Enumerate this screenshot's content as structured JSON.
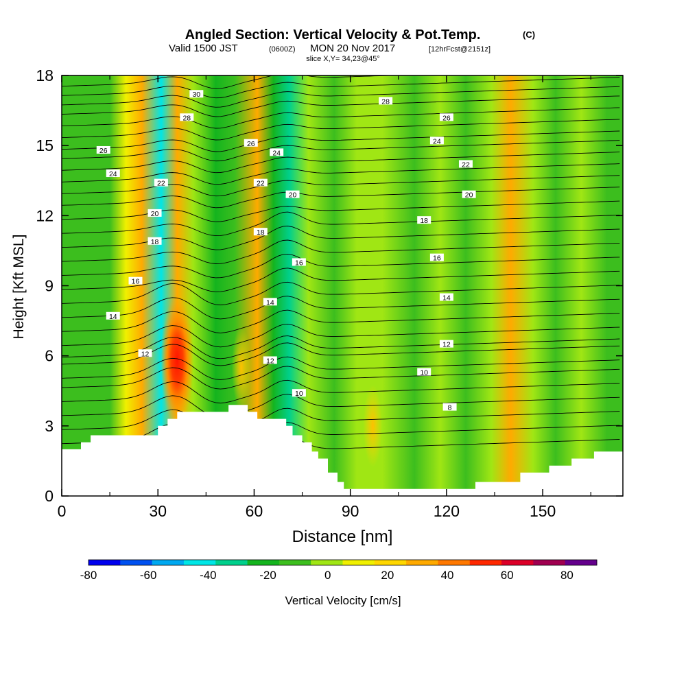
{
  "header": {
    "title_main": "Angled Section: Vertical Velocity & Pot.Temp.",
    "title_unit": "(C)",
    "sub_a": "Valid 1500 JST",
    "sub_b": "(0600Z)",
    "sub_c": "MON 20 Nov 2017",
    "sub_d": "[12hrFcst@2151z]",
    "slice": "slice X,Y= 34,23@45°"
  },
  "chart_data": {
    "type": "heatmap",
    "title": "Angled Section: Vertical Velocity & Pot.Temp. (C)",
    "xlabel": "Distance [nm]",
    "ylabel": "Height [Kft MSL]",
    "xlim": [
      0,
      175
    ],
    "ylim": [
      0,
      18
    ],
    "x_ticks": [
      0,
      30,
      60,
      90,
      120,
      150
    ],
    "y_ticks": [
      0,
      3,
      6,
      9,
      12,
      15,
      18
    ],
    "colorbar": {
      "label": "Vertical Velocity [cm/s]",
      "ticks": [
        -80,
        -60,
        -40,
        -20,
        0,
        20,
        40,
        60,
        80
      ],
      "range": [
        -80,
        90
      ],
      "colors": [
        "#0000ee",
        "#0050f0",
        "#00a8f0",
        "#00e6e6",
        "#00d08c",
        "#14b41e",
        "#3cbe1e",
        "#a0e614",
        "#f0f000",
        "#ffd700",
        "#ffaa00",
        "#ff7800",
        "#ff2800",
        "#dc0028",
        "#a00050",
        "#64008c"
      ]
    },
    "velocity_columns": [
      {
        "x": 3,
        "velocity": -16
      },
      {
        "x": 9,
        "velocity": -8
      },
      {
        "x": 15,
        "velocity": -14
      },
      {
        "x": 20,
        "velocity": 6
      },
      {
        "x": 25,
        "velocity": 30
      },
      {
        "x": 31,
        "velocity": -45
      },
      {
        "x": 36,
        "velocity": 30
      },
      {
        "x": 41,
        "velocity": -4
      },
      {
        "x": 48,
        "velocity": -22
      },
      {
        "x": 54,
        "velocity": -12
      },
      {
        "x": 61,
        "velocity": 35
      },
      {
        "x": 66,
        "velocity": -22
      },
      {
        "x": 71,
        "velocity": -35
      },
      {
        "x": 77,
        "velocity": 0
      },
      {
        "x": 85,
        "velocity": -6
      },
      {
        "x": 92,
        "velocity": -4
      },
      {
        "x": 100,
        "velocity": 4
      },
      {
        "x": 110,
        "velocity": -8
      },
      {
        "x": 118,
        "velocity": 2
      },
      {
        "x": 126,
        "velocity": -10
      },
      {
        "x": 134,
        "velocity": 2
      },
      {
        "x": 140,
        "velocity": 34
      },
      {
        "x": 147,
        "velocity": -2
      },
      {
        "x": 154,
        "velocity": -12
      },
      {
        "x": 162,
        "velocity": 4
      },
      {
        "x": 170,
        "velocity": -8
      }
    ],
    "velocity_maxima": [
      {
        "x": 36,
        "y": 5.8,
        "velocity": 62
      },
      {
        "x": 97,
        "y": 3.0,
        "velocity": 22
      },
      {
        "x": 56,
        "y": 5.5,
        "velocity": 30
      }
    ],
    "terrain": [
      [
        0,
        2
      ],
      [
        6,
        2
      ],
      [
        6,
        2.3
      ],
      [
        9,
        2.3
      ],
      [
        9,
        2.6
      ],
      [
        30,
        2.6
      ],
      [
        30,
        3.0
      ],
      [
        33,
        3.0
      ],
      [
        33,
        3.3
      ],
      [
        36,
        3.3
      ],
      [
        36,
        3.6
      ],
      [
        52,
        3.6
      ],
      [
        52,
        3.9
      ],
      [
        58,
        3.9
      ],
      [
        58,
        3.6
      ],
      [
        61,
        3.6
      ],
      [
        61,
        3.3
      ],
      [
        70,
        3.3
      ],
      [
        70,
        3.0
      ],
      [
        72,
        3.0
      ],
      [
        72,
        2.6
      ],
      [
        75,
        2.6
      ],
      [
        75,
        2.3
      ],
      [
        78,
        2.3
      ],
      [
        78,
        1.9
      ],
      [
        80,
        1.9
      ],
      [
        80,
        1.6
      ],
      [
        83,
        1.6
      ],
      [
        83,
        1.0
      ],
      [
        86,
        1.0
      ],
      [
        86,
        0.6
      ],
      [
        88,
        0.6
      ],
      [
        88,
        0.3
      ],
      [
        129,
        0.3
      ],
      [
        129,
        0.6
      ],
      [
        143,
        0.6
      ],
      [
        143,
        1.0
      ],
      [
        152,
        1.0
      ],
      [
        152,
        1.3
      ],
      [
        159,
        1.3
      ],
      [
        159,
        1.6
      ],
      [
        166,
        1.6
      ],
      [
        166,
        1.9
      ],
      [
        175,
        1.9
      ]
    ],
    "isentropes": [
      {
        "base": 2.0,
        "step": 0
      },
      {
        "base": 2.6,
        "step": 0
      },
      {
        "base": 3.2,
        "step": 0
      },
      {
        "base": 3.8,
        "step": 0
      },
      {
        "base": 4.4,
        "step": 1,
        "label": "8",
        "lx": 121,
        "ly": 3.8
      },
      {
        "base": 5.0,
        "step": 2
      },
      {
        "base": 5.4,
        "step": 3,
        "label": "10",
        "lx": 74,
        "ly": 4.4
      },
      {
        "base": 6.0,
        "step": 4
      },
      {
        "base": 6.3,
        "step": 5,
        "label": "12",
        "lx": 26,
        "ly": 6.1
      },
      {
        "base": 6.8,
        "step": 6
      },
      {
        "base": 7.4,
        "step": 7
      },
      {
        "base": 8.0,
        "step": 8,
        "label": "14",
        "lx": 16,
        "ly": 7.7
      },
      {
        "base": 8.6,
        "step": 9
      },
      {
        "base": 9.2,
        "step": 10
      },
      {
        "base": 9.8,
        "step": 11,
        "label": "16",
        "lx": 23,
        "ly": 9.2
      },
      {
        "base": 10.4,
        "step": 12
      },
      {
        "base": 11.0,
        "step": 13,
        "label": "18",
        "lx": 29,
        "ly": 10.9
      },
      {
        "base": 11.6,
        "step": 14
      },
      {
        "base": 12.2,
        "step": 15,
        "label": "20",
        "lx": 29,
        "ly": 12.1
      },
      {
        "base": 12.8,
        "step": 16
      },
      {
        "base": 13.3,
        "step": 17,
        "label": "22",
        "lx": 31,
        "ly": 13.4
      },
      {
        "base": 13.8,
        "step": 18
      },
      {
        "base": 14.3,
        "step": 19,
        "label": "24",
        "lx": 16,
        "ly": 13.8
      },
      {
        "base": 14.8,
        "step": 20
      },
      {
        "base": 15.2,
        "step": 21,
        "label": "26",
        "lx": 13,
        "ly": 14.8
      },
      {
        "base": 15.7,
        "step": 22
      },
      {
        "base": 16.2,
        "step": 23,
        "label": "28",
        "lx": 39,
        "ly": 16.2
      },
      {
        "base": 16.7,
        "step": 24
      },
      {
        "base": 17.1,
        "step": 25,
        "label": "30",
        "lx": 42,
        "ly": 17.2
      },
      {
        "base": 17.5,
        "step": 26
      },
      {
        "base": 17.9,
        "step": 27
      }
    ],
    "contour_labels": [
      {
        "text": "26",
        "x": 59,
        "y": 15.1
      },
      {
        "text": "24",
        "x": 67,
        "y": 14.7
      },
      {
        "text": "22",
        "x": 62,
        "y": 13.4
      },
      {
        "text": "20",
        "x": 72,
        "y": 12.9
      },
      {
        "text": "18",
        "x": 62,
        "y": 11.3
      },
      {
        "text": "16",
        "x": 74,
        "y": 10.0
      },
      {
        "text": "14",
        "x": 65,
        "y": 8.3
      },
      {
        "text": "12",
        "x": 65,
        "y": 5.8
      },
      {
        "text": "28",
        "x": 101,
        "y": 16.9
      },
      {
        "text": "26",
        "x": 120,
        "y": 16.2
      },
      {
        "text": "24",
        "x": 117,
        "y": 15.2
      },
      {
        "text": "22",
        "x": 126,
        "y": 14.2
      },
      {
        "text": "20",
        "x": 127,
        "y": 12.9
      },
      {
        "text": "18",
        "x": 113,
        "y": 11.8
      },
      {
        "text": "16",
        "x": 117,
        "y": 10.2
      },
      {
        "text": "14",
        "x": 120,
        "y": 8.5
      },
      {
        "text": "12",
        "x": 120,
        "y": 6.5
      },
      {
        "text": "10",
        "x": 113,
        "y": 5.3
      }
    ]
  }
}
